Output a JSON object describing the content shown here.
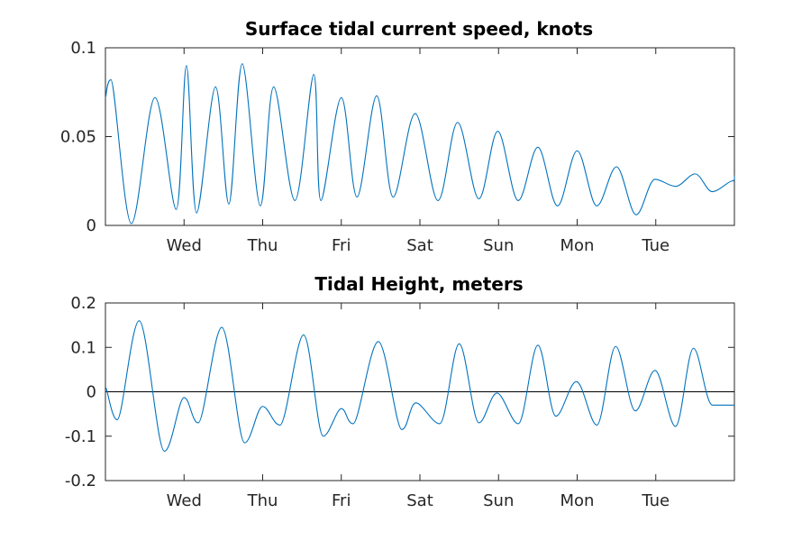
{
  "chart_data": [
    {
      "type": "line",
      "title": "Surface tidal current speed, knots",
      "xlabel": "",
      "ylabel": "",
      "x_ticks": [
        "Wed",
        "Thu",
        "Fri",
        "Sat",
        "Sun",
        "Mon",
        "Tue"
      ],
      "xlim": [
        0,
        8
      ],
      "x_tick_positions": [
        1,
        2,
        3,
        4,
        5,
        6,
        7
      ],
      "ylim": [
        0,
        0.1
      ],
      "y_ticks": [
        0,
        0.05,
        0.1
      ],
      "y_tick_labels": [
        "0",
        "0.05",
        "0.1"
      ],
      "grid": false,
      "series": [
        {
          "color": "#0072BD",
          "x": [
            0,
            0.07,
            0.33,
            0.63,
            0.9,
            1.03,
            1.16,
            1.4,
            1.57,
            1.74,
            1.97,
            2.14,
            2.41,
            2.65,
            2.74,
            3.0,
            3.2,
            3.45,
            3.66,
            3.94,
            4.23,
            4.48,
            4.75,
            4.99,
            5.25,
            5.5,
            5.75,
            6.0,
            6.25,
            6.5,
            6.75,
            6.99,
            7.25,
            7.5,
            7.72,
            7.97,
            8.0
          ],
          "y": [
            0.072,
            0.082,
            0.001,
            0.072,
            0.009,
            0.09,
            0.007,
            0.078,
            0.012,
            0.091,
            0.011,
            0.078,
            0.014,
            0.085,
            0.014,
            0.072,
            0.016,
            0.073,
            0.016,
            0.063,
            0.014,
            0.058,
            0.015,
            0.053,
            0.014,
            0.044,
            0.011,
            0.042,
            0.011,
            0.033,
            0.006,
            0.026,
            0.022,
            0.029,
            0.019,
            0.025,
            0.028
          ]
        }
      ]
    },
    {
      "type": "line",
      "title": "Tidal Height, meters",
      "xlabel": "",
      "ylabel": "",
      "x_ticks": [
        "Wed",
        "Thu",
        "Fri",
        "Sat",
        "Sun",
        "Mon",
        "Tue"
      ],
      "xlim": [
        0,
        8
      ],
      "x_tick_positions": [
        1,
        2,
        3,
        4,
        5,
        6,
        7
      ],
      "ylim": [
        -0.2,
        0.2
      ],
      "y_ticks": [
        -0.2,
        -0.1,
        0,
        0.1,
        0.2
      ],
      "y_tick_labels": [
        "-0.2",
        "-0.1",
        "0",
        "0.1",
        "0.2"
      ],
      "grid": false,
      "zero_line": true,
      "series": [
        {
          "color": "#0072BD",
          "x": [
            0,
            0.15,
            0.43,
            0.75,
            1.0,
            1.18,
            1.48,
            1.77,
            2.0,
            2.22,
            2.52,
            2.77,
            3.0,
            3.15,
            3.47,
            3.77,
            3.95,
            4.25,
            4.5,
            4.75,
            4.98,
            5.25,
            5.5,
            5.73,
            5.99,
            6.25,
            6.49,
            6.74,
            6.99,
            7.25,
            7.48,
            7.72,
            8.0
          ],
          "y": [
            0.01,
            -0.063,
            0.16,
            -0.134,
            -0.013,
            -0.07,
            0.145,
            -0.115,
            -0.033,
            -0.075,
            0.128,
            -0.1,
            -0.038,
            -0.072,
            0.113,
            -0.085,
            -0.025,
            -0.072,
            0.108,
            -0.07,
            -0.003,
            -0.072,
            0.105,
            -0.055,
            0.023,
            -0.075,
            0.102,
            -0.043,
            0.048,
            -0.078,
            0.098,
            -0.03,
            -0.03
          ]
        }
      ]
    }
  ]
}
